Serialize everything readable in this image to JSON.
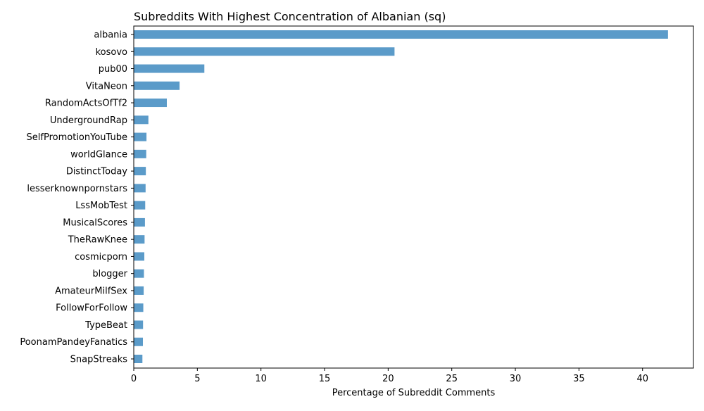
{
  "chart_data": {
    "type": "bar",
    "orientation": "horizontal",
    "title": "Subreddits With Highest Concentration of Albanian (sq)",
    "xlabel": "Percentage of Subreddit Comments",
    "ylabel": "",
    "xlim": [
      0,
      44
    ],
    "xticks": [
      0,
      5,
      10,
      15,
      20,
      25,
      30,
      35,
      40
    ],
    "grid": false,
    "legend": "none",
    "bar_color": "#5b9bc9",
    "categories": [
      "albania",
      "kosovo",
      "pub00",
      "VitaNeon",
      "RandomActsOfTf2",
      "UndergroundRap",
      "SelfPromotionYouTube",
      "worldGlance",
      "DistinctToday",
      "lesserknownpornstars",
      "LssMobTest",
      "MusicalScores",
      "TheRawKnee",
      "cosmicporn",
      "blogger",
      "AmateurMilfSex",
      "FollowForFollow",
      "TypeBeat",
      "PoonamPandeyFanatics",
      "SnapStreaks"
    ],
    "values": [
      42.0,
      20.5,
      5.55,
      3.6,
      2.6,
      1.15,
      1.0,
      0.98,
      0.95,
      0.93,
      0.9,
      0.88,
      0.85,
      0.83,
      0.8,
      0.78,
      0.75,
      0.73,
      0.72,
      0.68
    ]
  }
}
